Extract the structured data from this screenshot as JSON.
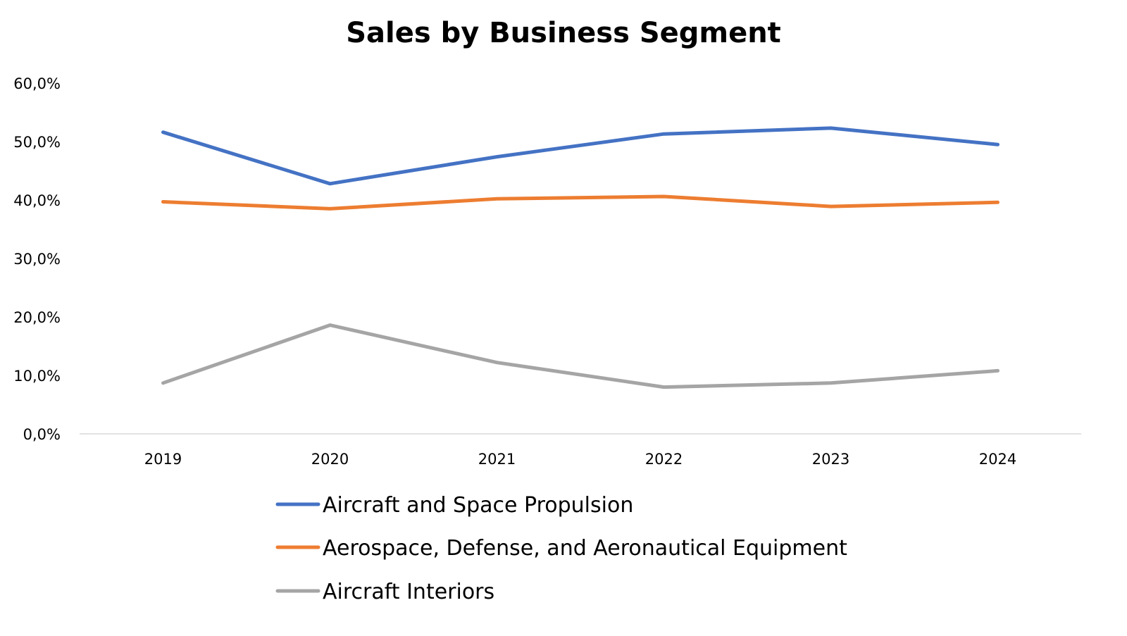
{
  "chart_data": {
    "type": "line",
    "title": "Sales by Business Segment",
    "xlabel": "",
    "ylabel": "",
    "categories": [
      "2019",
      "2020",
      "2021",
      "2022",
      "2023",
      "2024"
    ],
    "y_ticks": [
      "0,0%",
      "10,0%",
      "20,0%",
      "30,0%",
      "40,0%",
      "50,0%",
      "60,0%"
    ],
    "ylim": [
      0,
      60
    ],
    "grid": false,
    "legend_position": "bottom",
    "series": [
      {
        "name": "Aircraft and Space Propulsion",
        "color": "#4472C4",
        "values": [
          51.6,
          42.8,
          47.4,
          51.3,
          52.3,
          49.5
        ]
      },
      {
        "name": "Aerospace, Defense, and Aeronautical Equipment",
        "color": "#ED7D31",
        "values": [
          39.7,
          38.5,
          40.2,
          40.6,
          38.9,
          39.6
        ]
      },
      {
        "name": "Aircraft Interiors",
        "color": "#A5A5A5",
        "values": [
          8.7,
          18.6,
          12.2,
          8.0,
          8.7,
          10.8
        ]
      }
    ]
  }
}
